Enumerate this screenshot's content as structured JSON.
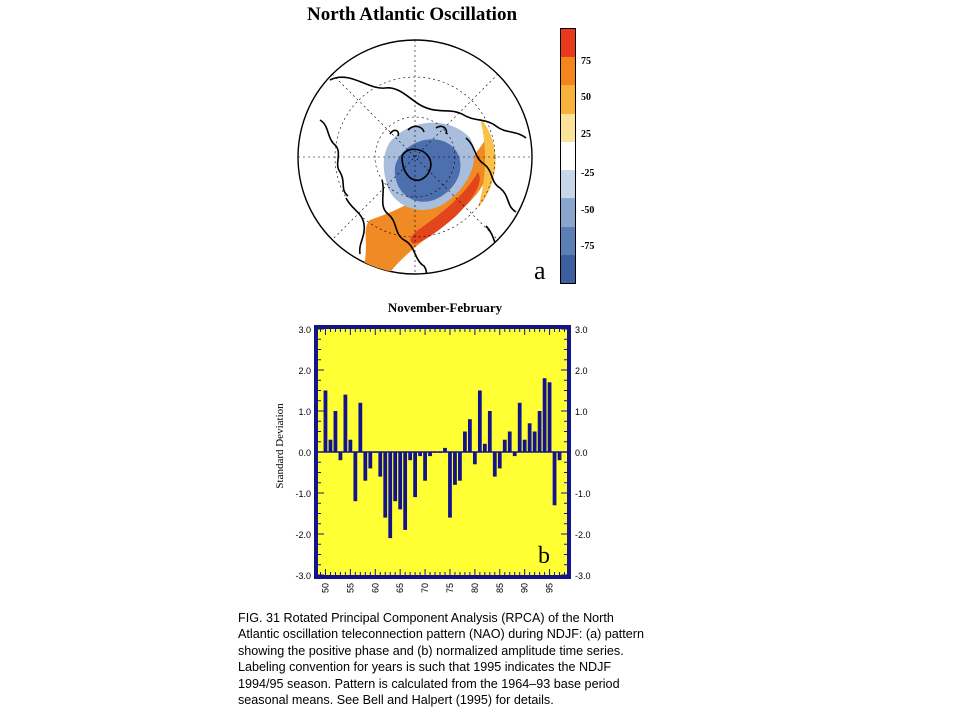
{
  "figure": {
    "title": "North Atlantic Oscillation",
    "panel_a_label": "a",
    "panel_b_label": "b",
    "colorbar": {
      "labels": [
        "75",
        "50",
        "25",
        "-25",
        "-50",
        "-75"
      ],
      "colors": [
        "#e8391c",
        "#f4841e",
        "#f9b23b",
        "#fbe49a",
        "#ffffff",
        "#c7d6e9",
        "#8aa6cf",
        "#5c7fb8",
        "#3d5fa0"
      ]
    },
    "map": {
      "positive_color": "#f08a24",
      "positive_core_color": "#e2451c",
      "negative_color": "#4e6fae",
      "negative_light_color": "#a8bedc"
    }
  },
  "chart_data": {
    "type": "bar",
    "title": "November-February",
    "ylabel": "Standard Deviation",
    "ylim": [
      -3.0,
      3.0
    ],
    "yticks": [
      "3.0",
      "2.0",
      "1.0",
      "0.0",
      "-1.0",
      "-2.0",
      "-3.0"
    ],
    "xticks": [
      "50",
      "55",
      "60",
      "65",
      "70",
      "75",
      "80",
      "85",
      "90",
      "95"
    ],
    "x": [
      1950,
      1951,
      1952,
      1953,
      1954,
      1955,
      1956,
      1957,
      1958,
      1959,
      1960,
      1961,
      1962,
      1963,
      1964,
      1965,
      1966,
      1967,
      1968,
      1969,
      1970,
      1971,
      1972,
      1973,
      1974,
      1975,
      1976,
      1977,
      1978,
      1979,
      1980,
      1981,
      1982,
      1983,
      1984,
      1985,
      1986,
      1987,
      1988,
      1989,
      1990,
      1991,
      1992,
      1993,
      1994,
      1995,
      1996,
      1997
    ],
    "values": [
      1.5,
      0.3,
      1.0,
      -0.2,
      1.4,
      0.3,
      -1.2,
      1.2,
      -0.7,
      -0.4,
      0.0,
      -0.6,
      -1.6,
      -2.1,
      -1.2,
      -1.4,
      -1.9,
      -0.2,
      -1.1,
      -0.1,
      -0.7,
      -0.1,
      0.0,
      0.0,
      0.1,
      -1.6,
      -0.8,
      -0.7,
      0.5,
      0.8,
      -0.3,
      1.5,
      0.2,
      1.0,
      -0.6,
      -0.4,
      0.3,
      0.5,
      -0.1,
      1.2,
      0.3,
      0.7,
      0.5,
      1.0,
      1.8,
      1.7,
      -1.3,
      -0.2
    ],
    "bar_color": "#14148a",
    "background_color": "#ffff33",
    "grid": false
  },
  "caption": {
    "lines": [
      "FIG. 31 Rotated Principal Component Analysis (RPCA) of the North",
      "Atlantic oscillation teleconnection pattern (NAO) during NDJF: (a) pattern",
      "showing the positive phase and (b) normalized amplitude time series.",
      " Labeling convention for years is such that 1995 indicates the NDJF",
      "1994/95 season.  Pattern is calculated from the 1964–93 base period",
      "seasonal means. See Bell and Halpert (1995) for details."
    ]
  }
}
